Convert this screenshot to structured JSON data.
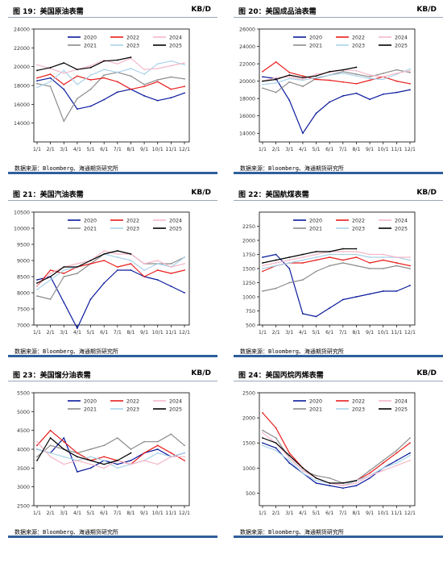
{
  "source_note": "数据来源：Bloomberg、海通期货研究所",
  "legend_years": [
    "2020",
    "2021",
    "2022",
    "2023",
    "2024",
    "2025"
  ],
  "series_colors": {
    "2020": "#0a1a9c",
    "2021": "#8c8c8c",
    "2022": "#e81e1e",
    "2023": "#a9d3ea",
    "2024": "#f4b8c8",
    "2025": "#000000"
  },
  "month_ticks": [
    "1/1",
    "2/1",
    "3/1",
    "4/1",
    "5/1",
    "6/1",
    "7/1",
    "8/1",
    "9/1",
    "10/1",
    "11/1",
    "12/1"
  ],
  "chart_data": [
    {
      "type": "line",
      "title": "图 19：美国原油表需",
      "unit": "KB/D",
      "ylim": [
        12000,
        24000
      ],
      "yticks": [
        14000,
        16000,
        18000,
        20000,
        22000,
        24000
      ],
      "series": [
        {
          "name": "2020",
          "values": [
            18500,
            18800,
            17600,
            15500,
            15800,
            16500,
            17300,
            17600,
            16900,
            16400,
            16700,
            17200
          ]
        },
        {
          "name": "2021",
          "values": [
            18200,
            17900,
            14200,
            16600,
            17600,
            19100,
            19400,
            19000,
            18100,
            18600,
            18900,
            18700
          ]
        },
        {
          "name": "2022",
          "values": [
            18800,
            19200,
            18100,
            19000,
            18600,
            18800,
            18400,
            17600,
            17900,
            18400,
            17600,
            17900
          ]
        },
        {
          "name": "2023",
          "values": [
            17800,
            18400,
            19600,
            18100,
            19100,
            19700,
            19400,
            19800,
            19200,
            20300,
            20600,
            20200
          ]
        },
        {
          "name": "2024",
          "values": [
            20200,
            19800,
            19300,
            19700,
            20100,
            20700,
            20300,
            20900,
            19700,
            19800,
            20100,
            20400
          ]
        },
        {
          "name": "2025",
          "values": [
            19600,
            19900,
            20400,
            19700,
            19900,
            20600,
            20700,
            21000,
            null,
            null,
            null,
            null
          ]
        }
      ]
    },
    {
      "type": "line",
      "title": "图 20：美国成品油表需",
      "unit": "KB/D",
      "ylim": [
        13000,
        26000
      ],
      "yticks": [
        14000,
        16000,
        18000,
        20000,
        22000,
        24000,
        26000
      ],
      "series": [
        {
          "name": "2020",
          "values": [
            20500,
            20300,
            17800,
            14000,
            16300,
            17600,
            18300,
            18600,
            17900,
            18500,
            18700,
            19000
          ]
        },
        {
          "name": "2021",
          "values": [
            19200,
            18700,
            19900,
            19400,
            20300,
            20700,
            21100,
            20800,
            20500,
            20900,
            21300,
            21000
          ]
        },
        {
          "name": "2022",
          "values": [
            21100,
            22200,
            21000,
            20600,
            20200,
            20100,
            19900,
            19700,
            20100,
            20500,
            20000,
            19700
          ]
        },
        {
          "name": "2023",
          "values": [
            19600,
            19800,
            20300,
            20100,
            20400,
            20700,
            20900,
            20600,
            20300,
            20200,
            20800,
            21400
          ]
        },
        {
          "name": "2024",
          "values": [
            20000,
            20400,
            20500,
            20200,
            20800,
            21000,
            21300,
            21200,
            20700,
            20500,
            20900,
            21200
          ]
        },
        {
          "name": "2025",
          "values": [
            20000,
            20200,
            20700,
            20400,
            20600,
            21100,
            21300,
            21600,
            null,
            null,
            null,
            null
          ]
        }
      ]
    },
    {
      "type": "line",
      "title": "图 21：美国汽油表需",
      "unit": "KB/D",
      "ylim": [
        7000,
        10500
      ],
      "yticks": [
        7000,
        7500,
        8000,
        8500,
        9000,
        9500,
        10000,
        10500
      ],
      "series": [
        {
          "name": "2020",
          "values": [
            8400,
            8500,
            7700,
            6900,
            7800,
            8300,
            8700,
            8700,
            8500,
            8400,
            8200,
            8000
          ]
        },
        {
          "name": "2021",
          "values": [
            7900,
            7800,
            8500,
            8600,
            8900,
            9200,
            9300,
            9200,
            8900,
            8900,
            8900,
            9100
          ]
        },
        {
          "name": "2022",
          "values": [
            8200,
            8700,
            8600,
            8800,
            8900,
            9000,
            8800,
            8900,
            8500,
            8700,
            8600,
            8700
          ]
        },
        {
          "name": "2023",
          "values": [
            8100,
            8400,
            8700,
            8800,
            9000,
            9200,
            9100,
            9000,
            8700,
            8900,
            8800,
            9100
          ]
        },
        {
          "name": "2024",
          "values": [
            8200,
            8600,
            8800,
            8900,
            9000,
            9300,
            9200,
            9200,
            8900,
            9000,
            8800,
            8900
          ]
        },
        {
          "name": "2025",
          "values": [
            8300,
            8500,
            8800,
            8800,
            9000,
            9200,
            9300,
            9200,
            null,
            null,
            null,
            null
          ]
        }
      ]
    },
    {
      "type": "line",
      "title": "图 22：美国航煤表需",
      "unit": "KB/D",
      "ylim": [
        500,
        2500
      ],
      "yticks": [
        500,
        750,
        1000,
        1250,
        1500,
        1750,
        2000,
        2250
      ],
      "series": [
        {
          "name": "2020",
          "values": [
            1700,
            1750,
            1500,
            700,
            650,
            800,
            950,
            1000,
            1050,
            1100,
            1100,
            1200
          ]
        },
        {
          "name": "2021",
          "values": [
            1100,
            1150,
            1250,
            1300,
            1450,
            1550,
            1600,
            1550,
            1500,
            1500,
            1550,
            1500
          ]
        },
        {
          "name": "2022",
          "values": [
            1450,
            1550,
            1600,
            1600,
            1650,
            1700,
            1650,
            1700,
            1600,
            1650,
            1600,
            1550
          ]
        },
        {
          "name": "2023",
          "values": [
            1500,
            1550,
            1600,
            1650,
            1700,
            1750,
            1750,
            1750,
            1700,
            1700,
            1700,
            1650
          ]
        },
        {
          "name": "2024",
          "values": [
            1550,
            1600,
            1650,
            1700,
            1750,
            1800,
            1800,
            1800,
            1750,
            1750,
            1700,
            1700
          ]
        },
        {
          "name": "2025",
          "values": [
            1600,
            1650,
            1700,
            1750,
            1800,
            1800,
            1850,
            1850,
            null,
            null,
            null,
            null
          ]
        }
      ]
    },
    {
      "type": "line",
      "title": "图 23：美国馏分油表需",
      "unit": "KB/D",
      "ylim": [
        2500,
        5500
      ],
      "yticks": [
        2500,
        3000,
        3500,
        4000,
        4500,
        5000,
        5500
      ],
      "series": [
        {
          "name": "2020",
          "values": [
            4000,
            3900,
            4300,
            3400,
            3500,
            3700,
            3600,
            3700,
            3900,
            4000,
            3800,
            3900
          ]
        },
        {
          "name": "2021",
          "values": [
            3800,
            4100,
            4000,
            3900,
            4000,
            4100,
            4300,
            4000,
            4200,
            4200,
            4400,
            4100
          ]
        },
        {
          "name": "2022",
          "values": [
            4100,
            4500,
            4200,
            3900,
            3700,
            3800,
            3700,
            3600,
            3900,
            4100,
            3900,
            3700
          ]
        },
        {
          "name": "2023",
          "values": [
            4000,
            3900,
            3800,
            3700,
            3800,
            3700,
            3500,
            3600,
            3700,
            3900,
            3800,
            3900
          ]
        },
        {
          "name": "2024",
          "values": [
            4200,
            3800,
            3600,
            3700,
            3600,
            3500,
            3700,
            3600,
            3700,
            3600,
            3800,
            3800
          ]
        },
        {
          "name": "2025",
          "values": [
            3700,
            4300,
            4000,
            3800,
            3700,
            3600,
            3700,
            3900,
            null,
            null,
            null,
            null
          ]
        }
      ]
    },
    {
      "type": "line",
      "title": "图 24：美国丙烷丙烯表需",
      "unit": "KB/D",
      "ylim": [
        250,
        2500
      ],
      "yticks": [
        500,
        1000,
        1500,
        2000,
        2500
      ],
      "series": [
        {
          "name": "2020",
          "values": [
            1500,
            1400,
            1100,
            900,
            700,
            650,
            600,
            650,
            800,
            1000,
            1150,
            1300
          ]
        },
        {
          "name": "2021",
          "values": [
            1750,
            1600,
            1200,
            950,
            850,
            800,
            700,
            750,
            950,
            1150,
            1350,
            1600
          ]
        },
        {
          "name": "2022",
          "values": [
            2100,
            1800,
            1300,
            1000,
            800,
            700,
            650,
            750,
            900,
            1100,
            1300,
            1500
          ]
        },
        {
          "name": "2023",
          "values": [
            1450,
            1350,
            1150,
            900,
            750,
            700,
            650,
            750,
            850,
            1000,
            1100,
            1250
          ]
        },
        {
          "name": "2024",
          "values": [
            1700,
            1500,
            1200,
            950,
            800,
            700,
            650,
            700,
            850,
            950,
            1050,
            1150
          ]
        },
        {
          "name": "2025",
          "values": [
            1600,
            1500,
            1250,
            1000,
            800,
            700,
            700,
            750,
            null,
            null,
            null,
            null
          ]
        }
      ]
    }
  ]
}
